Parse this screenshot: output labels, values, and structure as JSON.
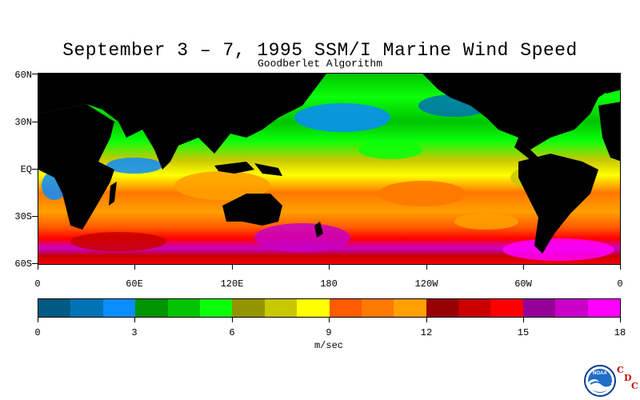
{
  "title": "September 3 – 7, 1995 SSM/I Marine Wind Speed",
  "subtitle": "Goodberlet Algorithm",
  "y_axis_labels": [
    "60N",
    "30N",
    "EQ",
    "30S",
    "60S"
  ],
  "x_axis_labels": [
    "0",
    "60E",
    "120E",
    "180",
    "120W",
    "60W",
    "0"
  ],
  "colorbar": {
    "colors": [
      "#005a84",
      "#0073b5",
      "#0a8cff",
      "#009400",
      "#00c400",
      "#0aff0a",
      "#949400",
      "#c8c800",
      "#ffff00",
      "#ff5a00",
      "#ff7800",
      "#ffa000",
      "#960000",
      "#c80000",
      "#ff0000",
      "#960096",
      "#c800c8",
      "#ff00ff"
    ],
    "tick_labels": [
      "0",
      "3",
      "6",
      "9",
      "12",
      "15",
      "18"
    ],
    "units": "m/sec"
  },
  "logo": {
    "text": "NOAA",
    "letters": [
      "C",
      "D",
      "C"
    ]
  },
  "colors": {
    "land": "#000000",
    "background": "#ffffff"
  }
}
